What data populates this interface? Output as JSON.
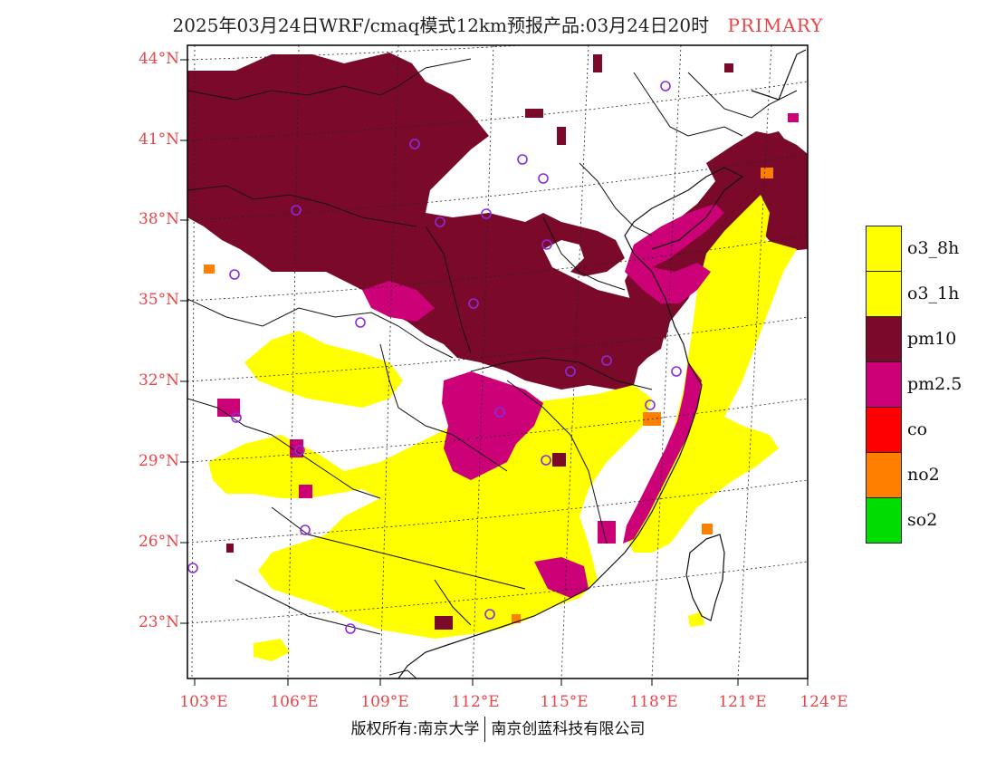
{
  "title": {
    "main": "2025年03月24日WRF/cmaq模式12km预报产品:03月24日20时",
    "tag": "PRIMARY",
    "tag_color": "#e8454a"
  },
  "axes": {
    "lat_labels": [
      "44°N",
      "41°N",
      "38°N",
      "35°N",
      "32°N",
      "29°N",
      "26°N",
      "23°N"
    ],
    "lon_labels": [
      "103°E",
      "106°E",
      "109°E",
      "112°E",
      "115°E",
      "118°E",
      "121°E",
      "124°E"
    ],
    "label_color": "#e8454a"
  },
  "legend": [
    {
      "label": "o3_8h",
      "color": "#ffff00"
    },
    {
      "label": "o3_1h",
      "color": "#ffff00"
    },
    {
      "label": "pm10",
      "color": "#7b0a2a"
    },
    {
      "label": "pm2.5",
      "color": "#cc0077"
    },
    {
      "label": "co",
      "color": "#ff0000"
    },
    {
      "label": "no2",
      "color": "#ff7f00"
    },
    {
      "label": "so2",
      "color": "#00dd00"
    }
  ],
  "footer": {
    "left": "版权所有:南京大学",
    "right": "南京创蓝科技有限公司"
  }
}
